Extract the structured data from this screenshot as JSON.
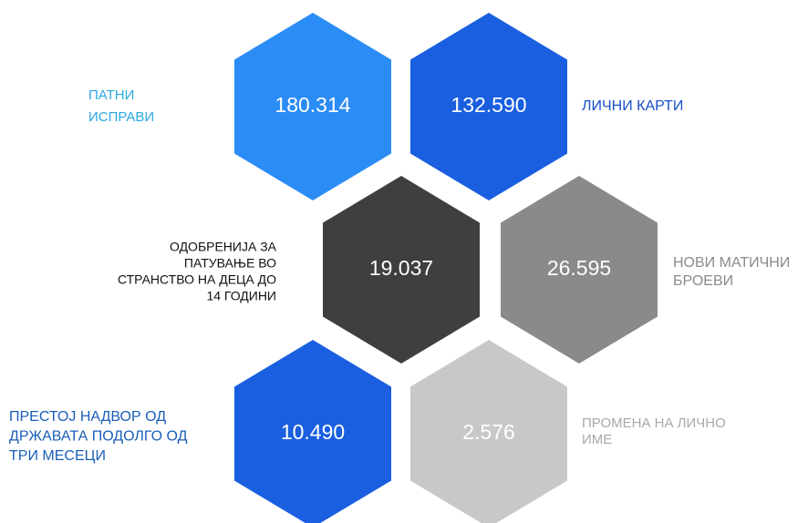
{
  "tiles": [
    {
      "value": "180.314",
      "label": [
        "ПАТНИ",
        "ИСПРАВИ"
      ],
      "color": "#2b8cf5",
      "label_color": "#29a8e0"
    },
    {
      "value": "132.590",
      "label": [
        "ЛИЧНИ КАРТИ"
      ],
      "color": "#1a5fe0",
      "label_color": "#1a4fc8"
    },
    {
      "value": "19.037",
      "label": [
        "ОДОБРЕНИЈА ЗА",
        "ПАТУВАЊЕ ВО",
        "СТРАНСТВО НА ДЕЦА ДО",
        "14 ГОДИНИ"
      ],
      "color": "#3f3f3f",
      "label_color": "#111111"
    },
    {
      "value": "26.595",
      "label": [
        "НОВИ МАТИЧНИ",
        "БРОЕВИ"
      ],
      "color": "#8a8a8a",
      "label_color": "#8a8a8a"
    },
    {
      "value": "10.490",
      "label": [
        "ПРЕСТОЈ НАДВОР ОД",
        "ДРЖАВАТА ПОДОЛГО ОД",
        "ТРИ МЕСЕЦИ"
      ],
      "color": "#1a5fe0",
      "label_color": "#1a5fb8"
    },
    {
      "value": "2.576",
      "label": [
        "ПРОМЕНА НА ЛИЧНО",
        "ИМЕ"
      ],
      "color": "#c8c8c8",
      "label_color": "#a8a8a8"
    }
  ]
}
